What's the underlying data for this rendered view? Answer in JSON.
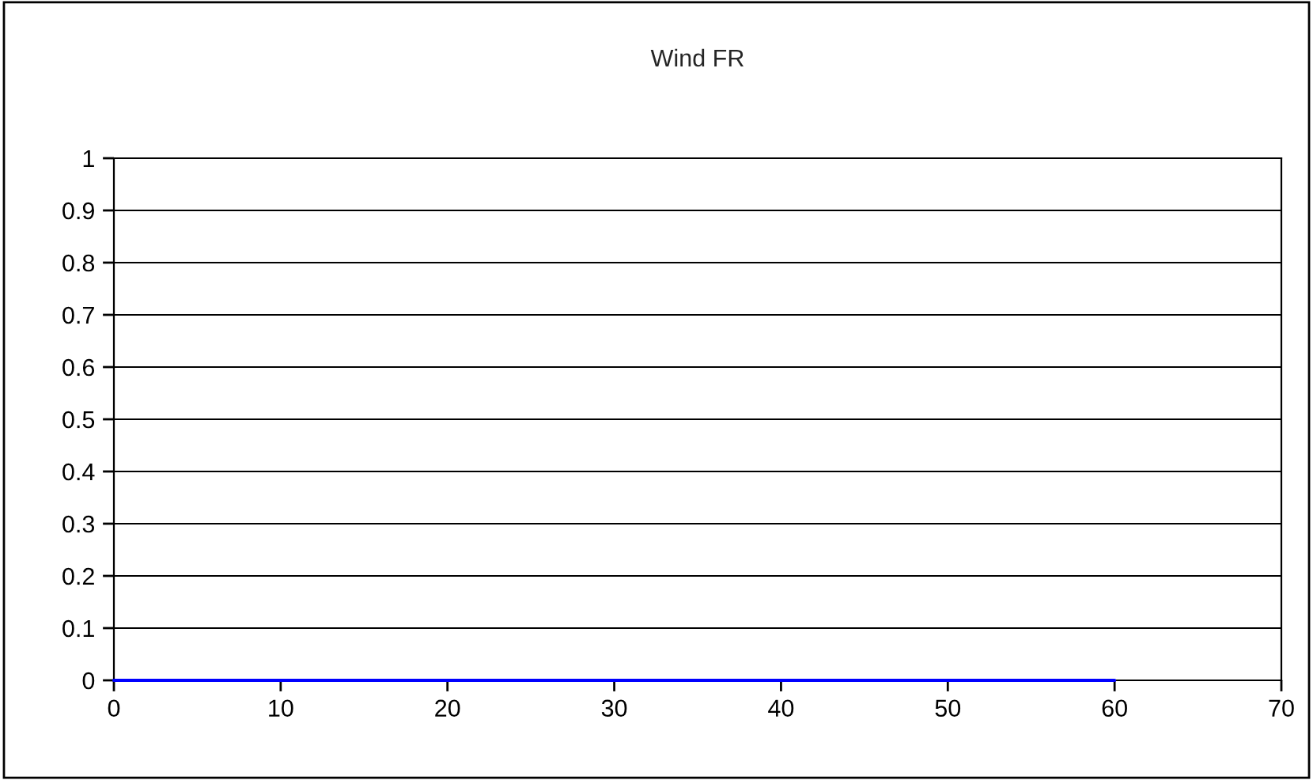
{
  "chart_data": {
    "type": "line",
    "title": "Wind FR",
    "x": [
      0,
      60
    ],
    "series": [
      {
        "color": "#0000ff",
        "values": [
          0,
          0
        ]
      }
    ],
    "xlim": [
      0,
      70
    ],
    "xticks": [
      0,
      10,
      20,
      30,
      40,
      50,
      60,
      70
    ],
    "ylim": [
      0,
      1
    ],
    "yticks": [
      0,
      0.1,
      0.2,
      0.3,
      0.4,
      0.5,
      0.6,
      0.7,
      0.8,
      0.9,
      1
    ],
    "grid": "y",
    "legend": false,
    "marker": "none",
    "line_style": "solid"
  }
}
